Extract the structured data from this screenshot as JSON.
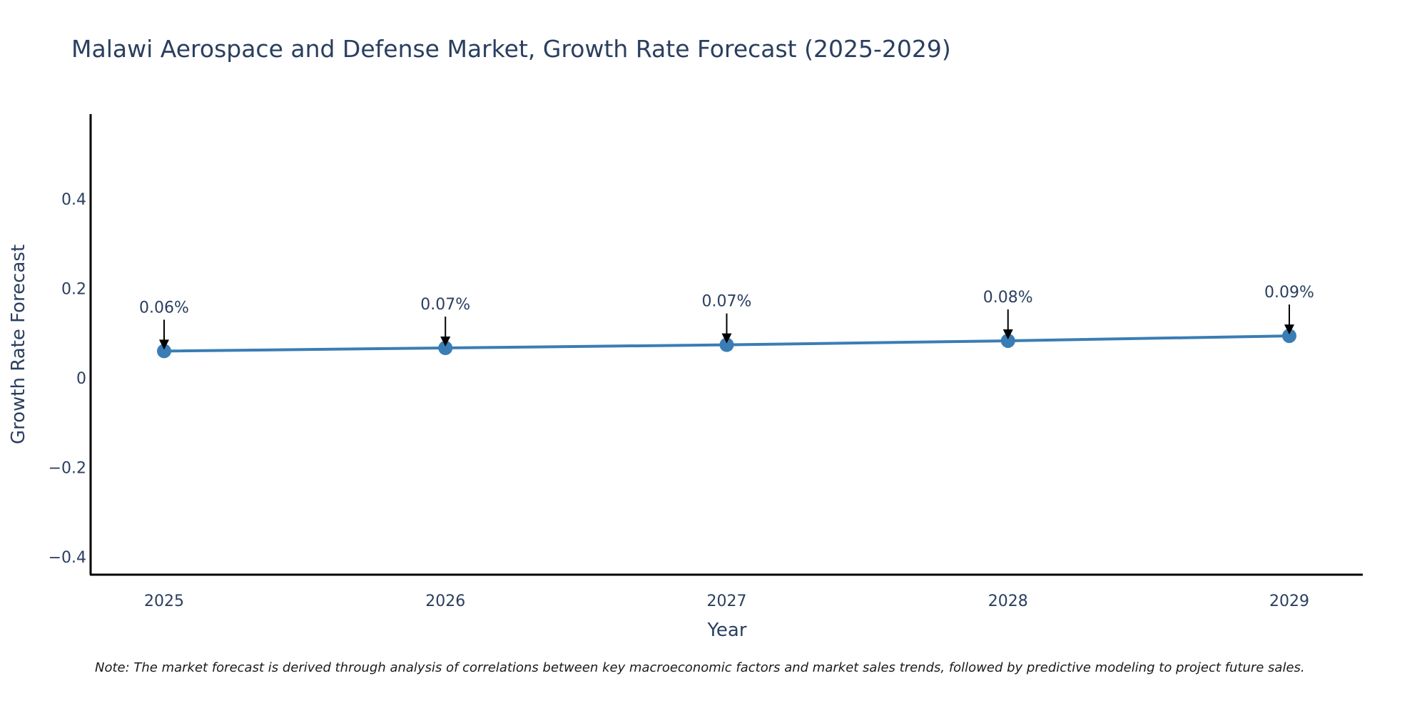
{
  "chart_data": {
    "type": "line",
    "title": "Malawi Aerospace and Defense Market, Growth Rate Forecast (2025-2029)",
    "xlabel": "Year",
    "ylabel": "Growth Rate Forecast",
    "x": [
      "2025",
      "2026",
      "2027",
      "2028",
      "2029"
    ],
    "series": [
      {
        "name": "Growth Rate Forecast",
        "values": [
          0.06,
          0.067,
          0.074,
          0.083,
          0.094
        ],
        "labels": [
          "0.06%",
          "0.07%",
          "0.07%",
          "0.08%",
          "0.09%"
        ],
        "color": "#3a7db5"
      }
    ],
    "ylim": [
      -0.44,
      0.59
    ],
    "yticks": [
      {
        "value": 0.4,
        "label": "0.4"
      },
      {
        "value": 0.2,
        "label": "0.2"
      },
      {
        "value": 0,
        "label": "0"
      },
      {
        "value": -0.2,
        "label": "−0.2"
      },
      {
        "value": -0.4,
        "label": "−0.4"
      }
    ],
    "grid": false,
    "note": "Note: The market forecast is derived through analysis of correlations between key macroeconomic factors and market sales trends, followed by predictive modeling to project future sales."
  },
  "colors": {
    "line": "#3a7db5",
    "text": "#2a3f5f",
    "axis": "#000000",
    "arrow": "#000000"
  }
}
